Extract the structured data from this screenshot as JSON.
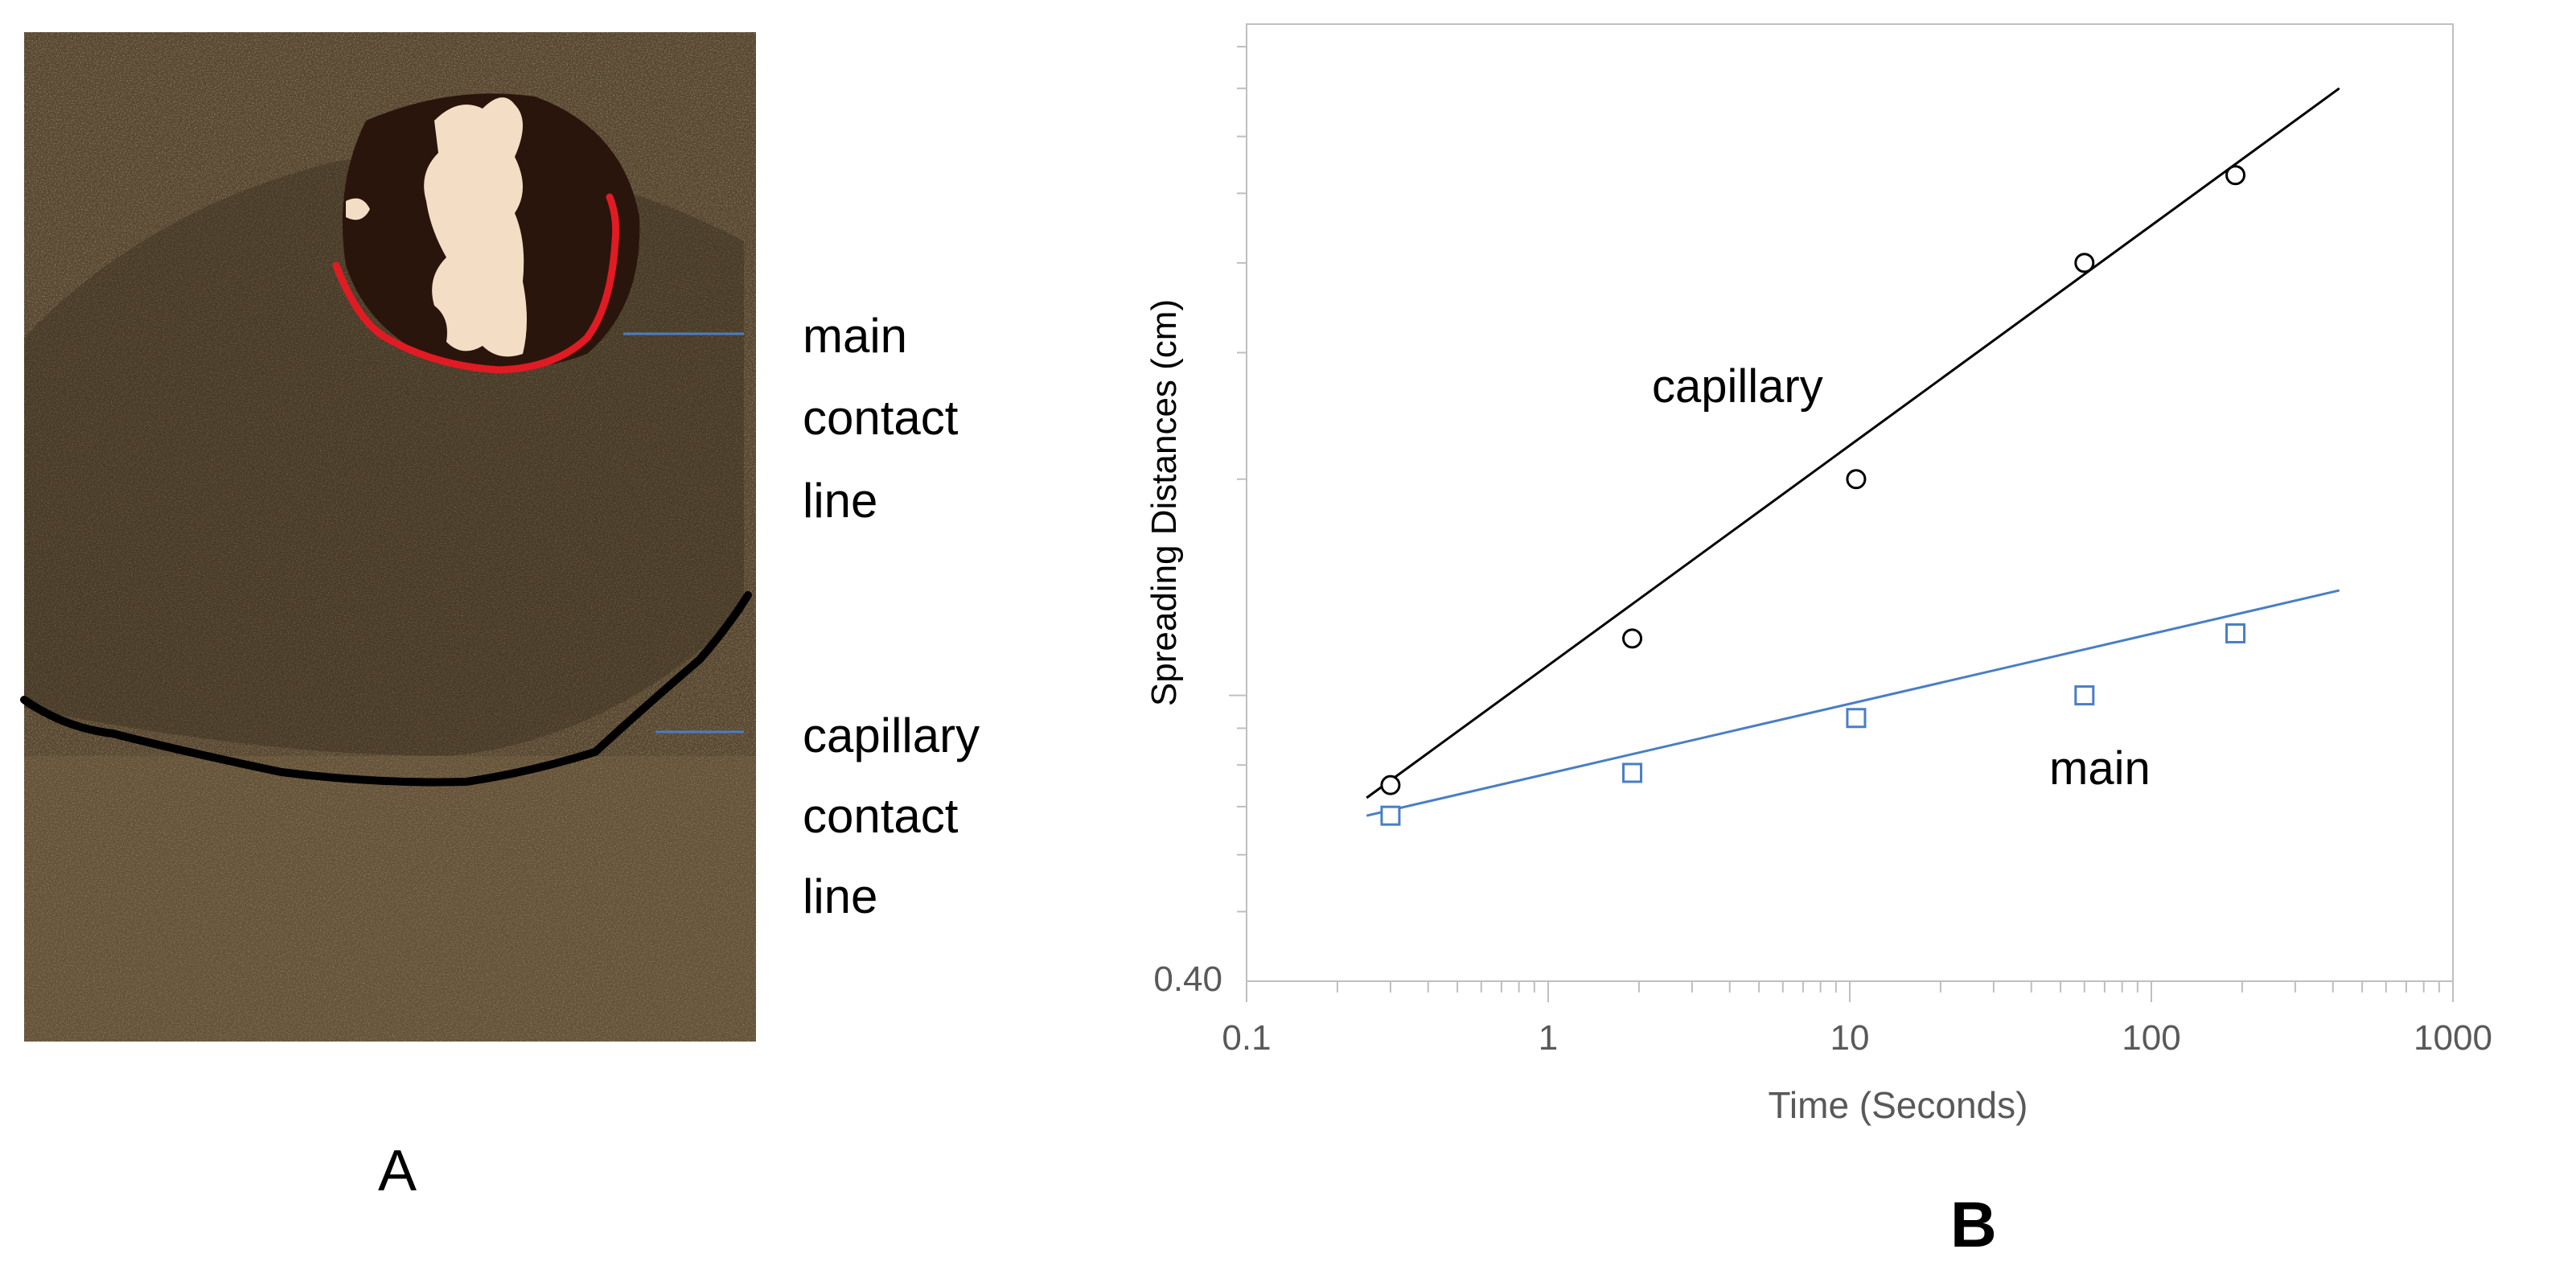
{
  "panel_a": {
    "label": "A",
    "annotations": [
      {
        "lines": [
          "main",
          "contact",
          "line"
        ],
        "line_color": "#4a7ec4",
        "contour_color": "#e01b24"
      },
      {
        "lines": [
          "capillary",
          "contact",
          "line"
        ],
        "line_color": "#4a7ec4",
        "contour_color": "#000000"
      }
    ]
  },
  "panel_b": {
    "label": "B"
  },
  "chart_data": {
    "type": "scatter",
    "title": "",
    "xlabel": "Time (Seconds)",
    "ylabel": "Spreading Distances (cm)",
    "x_scale": "log",
    "y_scale": "log",
    "xlim": [
      0.1,
      1000
    ],
    "x_ticks": [
      0.1,
      1,
      10,
      100,
      1000
    ],
    "x_tick_labels": [
      "0.1",
      "1",
      "10",
      "100",
      "1000"
    ],
    "y_min_label": "0.40",
    "grid": false,
    "series": [
      {
        "name": "capillary",
        "marker": "circle",
        "color": "#000000",
        "x": [
          0.3,
          1.9,
          10.5,
          60,
          190
        ],
        "y": [
          0.75,
          1.2,
          2.0,
          4.0,
          5.3
        ],
        "fit": {
          "x": [
            0.25,
            420
          ],
          "y": [
            0.72,
            7.0
          ]
        }
      },
      {
        "name": "main",
        "marker": "square",
        "color": "#4a7ec4",
        "x": [
          0.3,
          1.9,
          10.5,
          60,
          190
        ],
        "y": [
          0.68,
          0.78,
          0.93,
          1.0,
          1.22
        ],
        "fit": {
          "x": [
            0.25,
            420
          ],
          "y": [
            0.68,
            1.4
          ]
        }
      }
    ]
  }
}
